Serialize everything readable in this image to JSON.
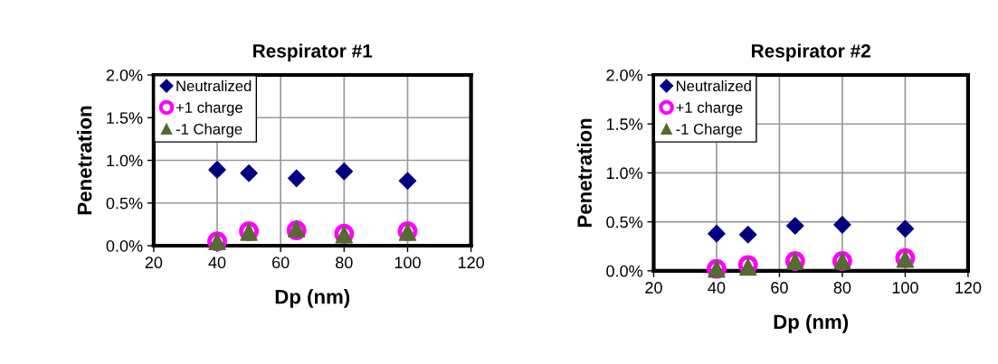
{
  "chart_data": [
    {
      "type": "scatter",
      "title": "Respirator #1",
      "xlabel": "Dp (nm)",
      "ylabel": "Penetration",
      "x": [
        40,
        50,
        65,
        80,
        100
      ],
      "series": [
        {
          "name": "Neutralized",
          "color": "#000080",
          "marker": "diamond",
          "values": [
            0.89,
            0.85,
            0.79,
            0.87,
            0.76
          ]
        },
        {
          "name": "+1 charge",
          "color": "#ff00ff",
          "marker": "circle",
          "values": [
            0.05,
            0.17,
            0.18,
            0.14,
            0.17
          ]
        },
        {
          "name": "-1 Charge",
          "color": "#556b2f",
          "marker": "triangle",
          "values": [
            0.05,
            0.16,
            0.2,
            0.13,
            0.16
          ]
        }
      ],
      "xlim": [
        20,
        120
      ],
      "xticks": [
        20,
        40,
        60,
        80,
        100,
        120
      ],
      "ylim": [
        0,
        2
      ],
      "yticks": [
        {
          "value": 0,
          "label": "0.0%"
        },
        {
          "value": 0.5,
          "label": "0.5%"
        },
        {
          "value": 1,
          "label": "1.0%"
        },
        {
          "value": 1.5,
          "label": "1.5%"
        },
        {
          "value": 2,
          "label": "2.0%"
        }
      ],
      "grid": true,
      "legend": "top left"
    },
    {
      "type": "scatter",
      "title": "Respirator #2",
      "xlabel": "Dp (nm)",
      "ylabel": "Penetration",
      "x": [
        40,
        50,
        65,
        80,
        100
      ],
      "series": [
        {
          "name": "Neutralized",
          "color": "#000080",
          "marker": "diamond",
          "values": [
            0.38,
            0.37,
            0.46,
            0.47,
            0.43
          ]
        },
        {
          "name": "+1 charge",
          "color": "#ff00ff",
          "marker": "circle",
          "values": [
            0.02,
            0.06,
            0.1,
            0.1,
            0.13
          ]
        },
        {
          "name": "-1 Charge",
          "color": "#556b2f",
          "marker": "triangle",
          "values": [
            0.02,
            0.04,
            0.1,
            0.1,
            0.12
          ]
        }
      ],
      "xlim": [
        20,
        120
      ],
      "xticks": [
        20,
        40,
        60,
        80,
        100,
        120
      ],
      "ylim": [
        0,
        2
      ],
      "yticks": [
        {
          "value": 0,
          "label": "0.0%"
        },
        {
          "value": 0.5,
          "label": "0.5%"
        },
        {
          "value": 1,
          "label": "1.0%"
        },
        {
          "value": 1.5,
          "label": "1.5%"
        },
        {
          "value": 2,
          "label": "2.0%"
        }
      ],
      "grid": true,
      "legend": "top left"
    }
  ]
}
